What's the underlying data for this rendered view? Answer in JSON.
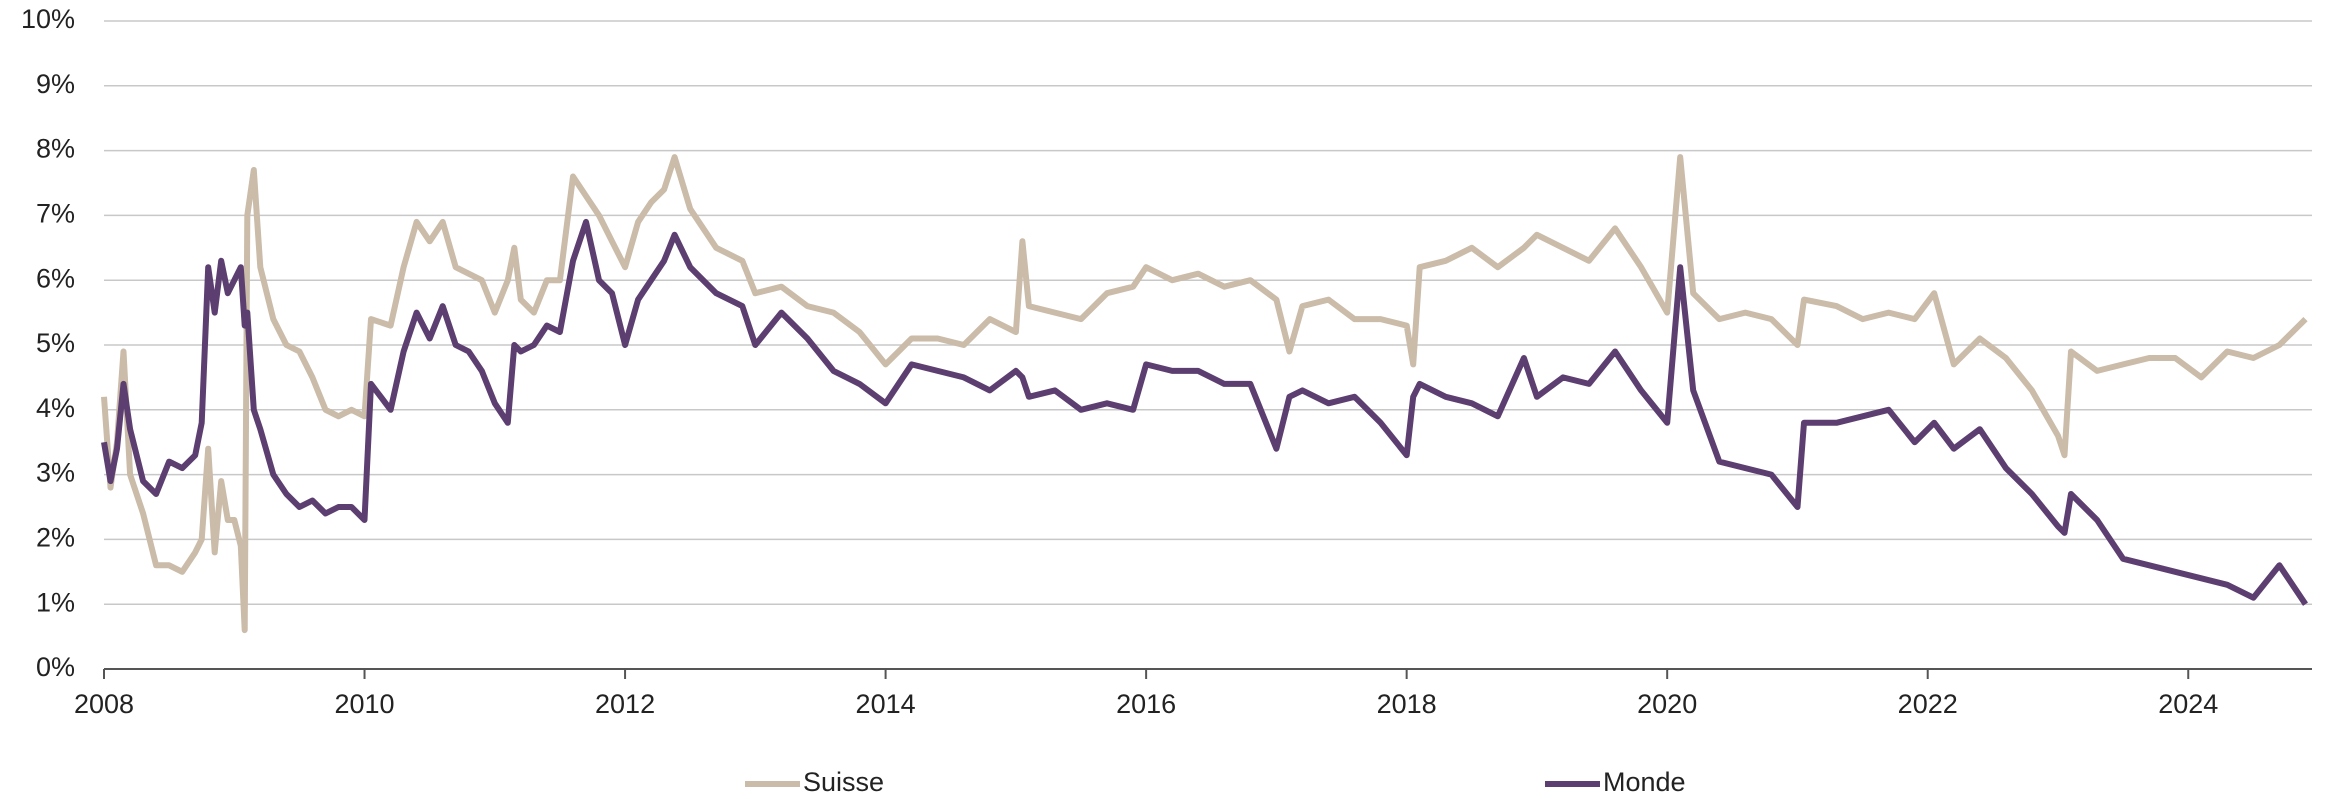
{
  "chart_data": {
    "type": "line",
    "x": [
      2008.0,
      2008.05,
      2008.1,
      2008.15,
      2008.2,
      2008.3,
      2008.4,
      2008.5,
      2008.6,
      2008.7,
      2008.75,
      2008.8,
      2008.85,
      2008.9,
      2008.95,
      2009.0,
      2009.05,
      2009.08,
      2009.1,
      2009.15,
      2009.2,
      2009.3,
      2009.4,
      2009.5,
      2009.6,
      2009.7,
      2009.8,
      2009.9,
      2010.0,
      2010.05,
      2010.2,
      2010.3,
      2010.4,
      2010.5,
      2010.6,
      2010.7,
      2010.8,
      2010.9,
      2011.0,
      2011.1,
      2011.15,
      2011.2,
      2011.3,
      2011.4,
      2011.5,
      2011.6,
      2011.7,
      2011.8,
      2011.9,
      2012.0,
      2012.1,
      2012.2,
      2012.3,
      2012.38,
      2012.5,
      2012.7,
      2012.9,
      2013.0,
      2013.2,
      2013.4,
      2013.6,
      2013.8,
      2014.0,
      2014.2,
      2014.4,
      2014.6,
      2014.8,
      2015.0,
      2015.05,
      2015.1,
      2015.3,
      2015.5,
      2015.7,
      2015.9,
      2016.0,
      2016.2,
      2016.4,
      2016.6,
      2016.8,
      2017.0,
      2017.1,
      2017.2,
      2017.4,
      2017.6,
      2017.8,
      2018.0,
      2018.05,
      2018.1,
      2018.3,
      2018.5,
      2018.7,
      2018.9,
      2019.0,
      2019.2,
      2019.4,
      2019.6,
      2019.8,
      2020.0,
      2020.1,
      2020.2,
      2020.4,
      2020.6,
      2020.8,
      2021.0,
      2021.05,
      2021.3,
      2021.5,
      2021.7,
      2021.9,
      2022.05,
      2022.2,
      2022.4,
      2022.6,
      2022.8,
      2023.0,
      2023.05,
      2023.1,
      2023.3,
      2023.5,
      2023.7,
      2023.9,
      2024.1,
      2024.3,
      2024.5,
      2024.7,
      2024.9
    ],
    "series": [
      {
        "name": "Suisse",
        "color": "#cbbba9",
        "values": [
          4.2,
          2.8,
          3.5,
          4.9,
          3.0,
          2.4,
          1.6,
          1.6,
          1.5,
          1.8,
          2.0,
          3.4,
          1.8,
          2.9,
          2.3,
          2.3,
          1.9,
          0.6,
          7.0,
          7.7,
          6.2,
          5.4,
          5.0,
          4.9,
          4.5,
          4.0,
          3.9,
          4.0,
          3.9,
          5.4,
          5.3,
          6.2,
          6.9,
          6.6,
          6.9,
          6.2,
          6.1,
          6.0,
          5.5,
          6.0,
          6.5,
          5.7,
          5.5,
          6.0,
          6.0,
          7.6,
          7.3,
          7.0,
          6.6,
          6.2,
          6.9,
          7.2,
          7.4,
          7.9,
          7.1,
          6.5,
          6.3,
          5.8,
          5.9,
          5.6,
          5.5,
          5.2,
          4.7,
          5.1,
          5.1,
          5.0,
          5.4,
          5.2,
          6.6,
          5.6,
          5.5,
          5.4,
          5.8,
          5.9,
          6.2,
          6.0,
          6.1,
          5.9,
          6.0,
          5.7,
          4.9,
          5.6,
          5.7,
          5.4,
          5.4,
          5.3,
          4.7,
          6.2,
          6.3,
          6.5,
          6.2,
          6.5,
          6.7,
          6.5,
          6.3,
          6.8,
          6.2,
          5.5,
          7.9,
          5.8,
          5.4,
          5.5,
          5.4,
          5.0,
          5.7,
          5.6,
          5.4,
          5.5,
          5.4,
          5.8,
          4.7,
          5.1,
          4.8,
          4.3,
          3.6,
          3.3,
          4.9,
          4.6,
          4.7,
          4.8,
          4.8,
          4.5,
          4.9,
          4.8,
          5.0,
          5.4
        ]
      },
      {
        "name": "Monde",
        "color": "#5c3f70",
        "values": [
          3.5,
          2.9,
          3.4,
          4.4,
          3.7,
          2.9,
          2.7,
          3.2,
          3.1,
          3.3,
          3.8,
          6.2,
          5.5,
          6.3,
          5.8,
          6.0,
          6.2,
          5.3,
          5.5,
          4.0,
          3.7,
          3.0,
          2.7,
          2.5,
          2.6,
          2.4,
          2.5,
          2.5,
          2.3,
          4.4,
          4.0,
          4.9,
          5.5,
          5.1,
          5.6,
          5.0,
          4.9,
          4.6,
          4.1,
          3.8,
          5.0,
          4.9,
          5.0,
          5.3,
          5.2,
          6.3,
          6.9,
          6.0,
          5.8,
          5.0,
          5.7,
          6.0,
          6.3,
          6.7,
          6.2,
          5.8,
          5.6,
          5.0,
          5.5,
          5.1,
          4.6,
          4.4,
          4.1,
          4.7,
          4.6,
          4.5,
          4.3,
          4.6,
          4.5,
          4.2,
          4.3,
          4.0,
          4.1,
          4.0,
          4.7,
          4.6,
          4.6,
          4.4,
          4.4,
          3.4,
          4.2,
          4.3,
          4.1,
          4.2,
          3.8,
          3.3,
          4.2,
          4.4,
          4.2,
          4.1,
          3.9,
          4.8,
          4.2,
          4.5,
          4.4,
          4.9,
          4.3,
          3.8,
          6.2,
          4.3,
          3.2,
          3.1,
          3.0,
          2.5,
          3.8,
          3.8,
          3.9,
          4.0,
          3.5,
          3.8,
          3.4,
          3.7,
          3.1,
          2.7,
          2.2,
          2.1,
          2.7,
          2.3,
          1.7,
          1.6,
          1.5,
          1.4,
          1.3,
          1.1,
          1.6,
          1.0
        ]
      }
    ],
    "xlim": [
      2008,
      2024.95
    ],
    "xticks": [
      2008,
      2010,
      2012,
      2014,
      2016,
      2018,
      2020,
      2022,
      2024
    ],
    "ylim": [
      0,
      10
    ],
    "yticks": [
      {
        "value": 0,
        "label": "0%"
      },
      {
        "value": 1,
        "label": "1%"
      },
      {
        "value": 2,
        "label": "2%"
      },
      {
        "value": 3,
        "label": "3%"
      },
      {
        "value": 4,
        "label": "4%"
      },
      {
        "value": 5,
        "label": "5%"
      },
      {
        "value": 6,
        "label": "6%"
      },
      {
        "value": 7,
        "label": "7%"
      },
      {
        "value": 8,
        "label": "8%"
      },
      {
        "value": 9,
        "label": "9%"
      },
      {
        "value": 10,
        "label": "10%"
      }
    ],
    "grid": true,
    "legend": "bottom"
  }
}
